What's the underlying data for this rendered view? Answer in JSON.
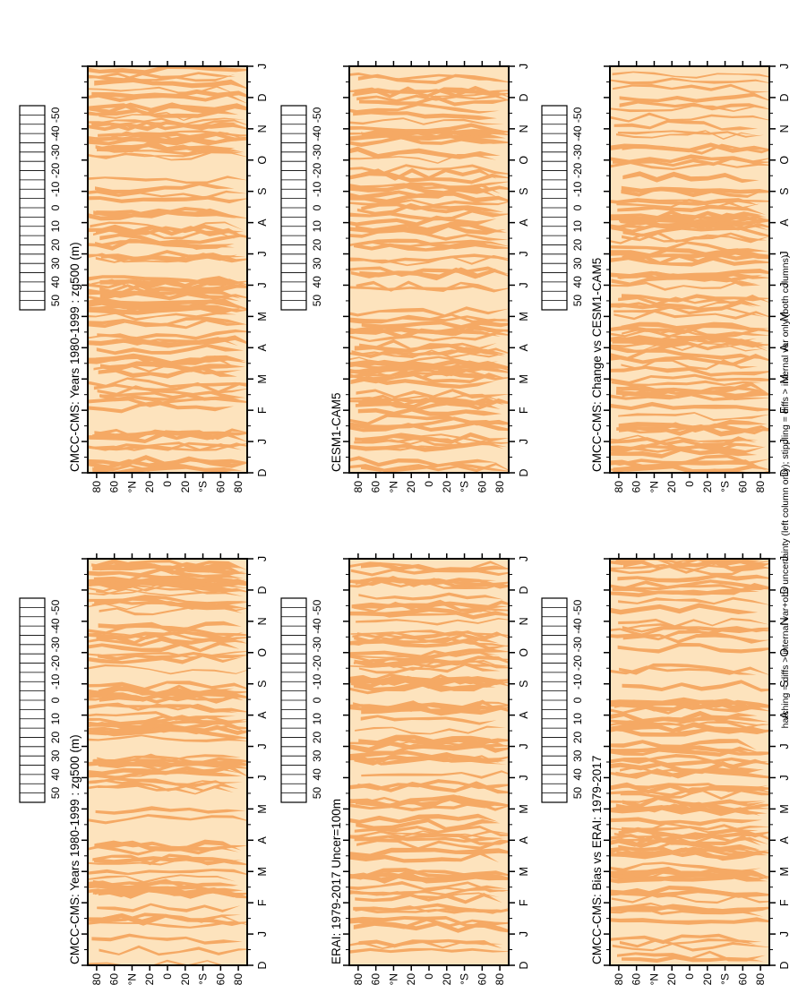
{
  "figure": {
    "footnote": "hatching = diffs > internal var+obs uncertainty (left column only); stippling = diffs > internal var only (both columns)"
  },
  "colors": {
    "fill_light": "#fde3bd",
    "fill_dark": "#f5a964",
    "frame": "#000000"
  },
  "colorbar": {
    "labels": [
      "50",
      "40",
      "30",
      "20",
      "10",
      "0",
      "-10",
      "-20",
      "-30",
      "-40",
      "-50"
    ],
    "colors": [
      "#0008c8",
      "#0018f0",
      "#0038ff",
      "#8c0a0a",
      "#c81414",
      "#f03c3c",
      "#fa6e4b",
      "#e67828",
      "#f0a046",
      "#f5c882",
      "#fde3bd",
      "#ffffff",
      "#ffffff",
      "#e0f5fa",
      "#b4e6ee",
      "#8ccdda",
      "#64a5cd",
      "#3c7dbe",
      "#2855a0",
      "#1e2d78",
      "#141446",
      "#000000"
    ]
  },
  "chart_data": [
    {
      "type": "heatmap",
      "title": "CMCC-CMS: Years 1980-1999 : zg500 (m)",
      "x_ticks": [
        "D",
        "J",
        "F",
        "M",
        "A",
        "M",
        "J",
        "J",
        "A",
        "S",
        "O",
        "N",
        "D",
        "J"
      ],
      "y_ticks": [
        "80",
        "60",
        "°N",
        "20",
        "0",
        "20",
        "°S",
        "60",
        "80"
      ],
      "ylim": [
        -90,
        90
      ],
      "dominant_range": [
        0,
        10
      ],
      "secondary_range": [
        10,
        20
      ]
    },
    {
      "type": "heatmap",
      "title": "CMCC-CMS: Years 1980-1999 : zg500 (m)",
      "x_ticks": [
        "D",
        "J",
        "F",
        "M",
        "A",
        "M",
        "J",
        "J",
        "A",
        "S",
        "O",
        "N",
        "D",
        "J"
      ],
      "y_ticks": [
        "80",
        "60",
        "°N",
        "20",
        "0",
        "20",
        "°S",
        "60",
        "80"
      ],
      "ylim": [
        -90,
        90
      ],
      "dominant_range": [
        0,
        10
      ],
      "secondary_range": [
        10,
        20
      ]
    },
    {
      "type": "heatmap",
      "title": "ERAI: 1979-2017 Uncer=100m",
      "x_ticks": [
        "D",
        "J",
        "F",
        "M",
        "A",
        "M",
        "J",
        "J",
        "A",
        "S",
        "O",
        "N",
        "D",
        "J"
      ],
      "y_ticks": [
        "80",
        "60",
        "°N",
        "20",
        "0",
        "20",
        "°S",
        "60",
        "80"
      ],
      "ylim": [
        -90,
        90
      ],
      "dominant_range": [
        0,
        10
      ],
      "secondary_range": [
        10,
        20
      ]
    },
    {
      "type": "heatmap",
      "title": "CESM1-CAM5",
      "x_ticks": [
        "D",
        "J",
        "F",
        "M",
        "A",
        "M",
        "J",
        "J",
        "A",
        "S",
        "O",
        "N",
        "D",
        "J"
      ],
      "y_ticks": [
        "80",
        "60",
        "°N",
        "20",
        "0",
        "20",
        "°S",
        "60",
        "80"
      ],
      "ylim": [
        -90,
        90
      ],
      "dominant_range": [
        0,
        10
      ],
      "secondary_range": [
        10,
        20
      ]
    },
    {
      "type": "heatmap",
      "title": "CMCC-CMS: Bias vs ERAI: 1979-2017",
      "x_ticks": [
        "D",
        "J",
        "F",
        "M",
        "A",
        "M",
        "J",
        "J",
        "A",
        "S",
        "O",
        "N",
        "D",
        "J"
      ],
      "y_ticks": [
        "80",
        "60",
        "°N",
        "20",
        "0",
        "20",
        "°S",
        "60",
        "80"
      ],
      "ylim": [
        -90,
        90
      ],
      "dominant_range": [
        0,
        10
      ],
      "secondary_range": [
        10,
        20
      ]
    },
    {
      "type": "heatmap",
      "title": "CMCC-CMS: Change vs CESM1-CAM5",
      "x_ticks": [
        "D",
        "J",
        "F",
        "M",
        "A",
        "M",
        "J",
        "J",
        "A",
        "S",
        "O",
        "N",
        "D",
        "J"
      ],
      "y_ticks": [
        "80",
        "60",
        "°N",
        "20",
        "0",
        "20",
        "°S",
        "60",
        "80"
      ],
      "ylim": [
        -90,
        90
      ],
      "dominant_range": [
        0,
        10
      ],
      "secondary_range": [
        10,
        20
      ]
    }
  ]
}
